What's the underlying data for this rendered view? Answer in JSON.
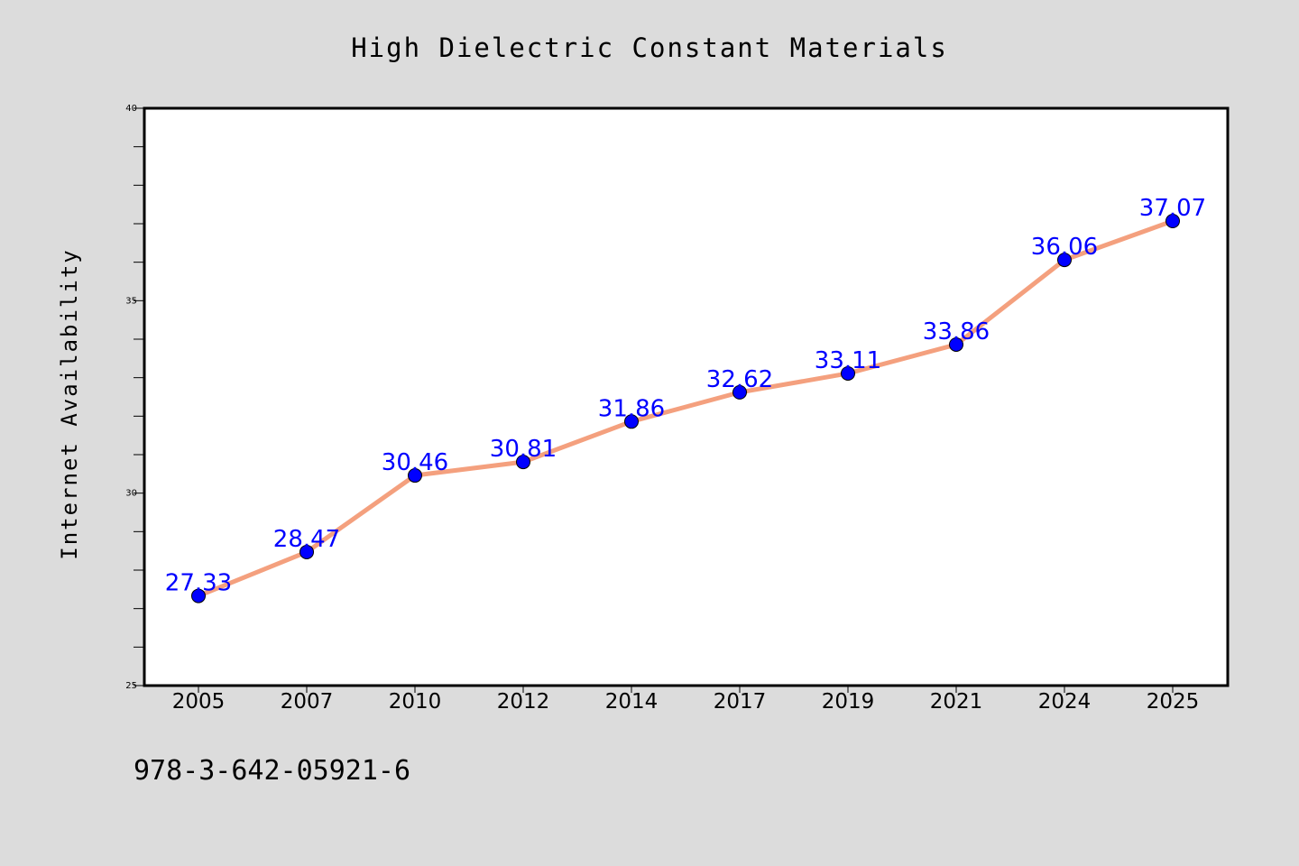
{
  "chart_data": {
    "type": "line",
    "title": "High Dielectric Constant Materials",
    "xlabel": "",
    "ylabel": "Internet Availability",
    "categories": [
      "2005",
      "2007",
      "2010",
      "2012",
      "2014",
      "2017",
      "2019",
      "2021",
      "2024",
      "2025"
    ],
    "series": [
      {
        "values": [
          27.33,
          28.47,
          30.46,
          30.81,
          31.86,
          32.62,
          33.11,
          33.86,
          36.06,
          37.07
        ],
        "labels": [
          "27.33",
          "28.47",
          "30.46",
          "30.81",
          "31.86",
          "32.62",
          "33.11",
          "33.86",
          "36.06",
          "37.07"
        ]
      }
    ],
    "ylim": [
      25,
      40
    ],
    "yticks": [
      "25",
      "30",
      "35",
      "40"
    ],
    "grid": false,
    "line_color": "#f4a07e",
    "marker_color": "#0000ff",
    "label_color": "#0000ff"
  },
  "footer": {
    "code": "978-3-642-05921-6"
  }
}
